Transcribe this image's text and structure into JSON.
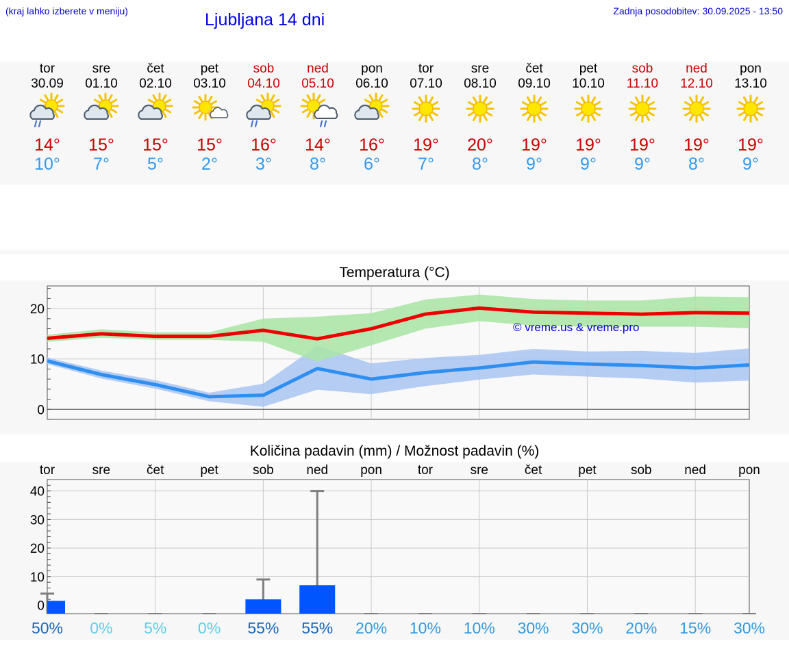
{
  "header": {
    "hint": "(kraj lahko izberete v meniju)",
    "title": "Ljubljana 14 dni",
    "updated_label": "Zadnja posodobitev:",
    "updated_value": "30.09.2025 - 13:50"
  },
  "colors": {
    "max_line": "#ee0000",
    "max_band": "#a9e5a4",
    "min_line": "#2f8ff0",
    "min_band": "#a9c4f2",
    "bar": "#0055ff",
    "error_bar": "#7f7f7f",
    "weekend": "#cc0000"
  },
  "days": [
    {
      "name": "tor",
      "date": "30.09",
      "weekend": false,
      "icon": "sun-cloud-rain-icon",
      "tmax": "14°",
      "tmin": "10°"
    },
    {
      "name": "sre",
      "date": "01.10",
      "weekend": false,
      "icon": "sun-cloud-icon",
      "tmax": "15°",
      "tmin": "7°"
    },
    {
      "name": "čet",
      "date": "02.10",
      "weekend": false,
      "icon": "sun-cloud-icon",
      "tmax": "15°",
      "tmin": "5°"
    },
    {
      "name": "pet",
      "date": "03.10",
      "weekend": false,
      "icon": "sun-small-cloud-icon",
      "tmax": "15°",
      "tmin": "2°"
    },
    {
      "name": "sob",
      "date": "04.10",
      "weekend": true,
      "icon": "sun-cloud-rain-icon",
      "tmax": "16°",
      "tmin": "3°"
    },
    {
      "name": "ned",
      "date": "05.10",
      "weekend": true,
      "icon": "sun-rain-cloud-icon",
      "tmax": "14°",
      "tmin": "8°"
    },
    {
      "name": "pon",
      "date": "06.10",
      "weekend": false,
      "icon": "sun-cloud-icon",
      "tmax": "16°",
      "tmin": "6°"
    },
    {
      "name": "tor",
      "date": "07.10",
      "weekend": false,
      "icon": "sun-icon",
      "tmax": "19°",
      "tmin": "7°"
    },
    {
      "name": "sre",
      "date": "08.10",
      "weekend": false,
      "icon": "sun-icon",
      "tmax": "20°",
      "tmin": "8°"
    },
    {
      "name": "čet",
      "date": "09.10",
      "weekend": false,
      "icon": "sun-icon",
      "tmax": "19°",
      "tmin": "9°"
    },
    {
      "name": "pet",
      "date": "10.10",
      "weekend": false,
      "icon": "sun-icon",
      "tmax": "19°",
      "tmin": "9°"
    },
    {
      "name": "sob",
      "date": "11.10",
      "weekend": true,
      "icon": "sun-icon",
      "tmax": "19°",
      "tmin": "9°"
    },
    {
      "name": "ned",
      "date": "12.10",
      "weekend": true,
      "icon": "sun-icon",
      "tmax": "19°",
      "tmin": "8°"
    },
    {
      "name": "pon",
      "date": "13.10",
      "weekend": false,
      "icon": "sun-icon",
      "tmax": "19°",
      "tmin": "9°"
    }
  ],
  "chart_data": [
    {
      "type": "line",
      "title": "Temperatura (°C)",
      "ylim": [
        -2,
        24.5
      ],
      "yticks": [
        0,
        10,
        20
      ],
      "x": [
        0,
        1,
        2,
        3,
        4,
        5,
        6,
        7,
        8,
        9,
        10,
        11,
        12,
        13
      ],
      "series": [
        {
          "name": "max",
          "values": [
            14.1,
            15.0,
            14.5,
            14.5,
            15.7,
            14.0,
            16.0,
            18.9,
            20.1,
            19.3,
            19.1,
            18.9,
            19.2,
            19.1
          ],
          "band_low": [
            13.4,
            14.2,
            13.8,
            13.8,
            13.4,
            9.5,
            12.7,
            16.0,
            17.5,
            16.6,
            16.4,
            16.4,
            16.4,
            16.1
          ],
          "band_high": [
            14.8,
            15.9,
            15.3,
            15.3,
            18.0,
            18.4,
            19.1,
            21.8,
            22.8,
            21.9,
            21.6,
            21.6,
            22.4,
            22.3
          ]
        },
        {
          "name": "min",
          "values": [
            9.6,
            6.9,
            4.9,
            2.5,
            2.8,
            8.1,
            6.0,
            7.3,
            8.2,
            9.4,
            9.0,
            8.7,
            8.2,
            8.8
          ],
          "band_low": [
            9.0,
            6.1,
            4.1,
            1.6,
            0.5,
            3.9,
            3.0,
            4.6,
            5.9,
            6.9,
            6.5,
            6.1,
            5.3,
            5.7
          ],
          "band_high": [
            10.3,
            7.7,
            5.8,
            3.3,
            5.1,
            12.6,
            9.1,
            10.2,
            10.8,
            12.0,
            11.5,
            11.6,
            11.2,
            12.1
          ]
        }
      ],
      "annotation": "© vreme.us & vreme.pro"
    },
    {
      "type": "bar",
      "title": "Količina padavin (mm) / Možnost padavin (%)",
      "ylim": [
        -3,
        44
      ],
      "yticks": [
        0,
        10,
        20,
        30,
        40
      ],
      "categories": [
        "tor",
        "sre",
        "čet",
        "pet",
        "sob",
        "ned",
        "pon",
        "tor",
        "sre",
        "čet",
        "pet",
        "sob",
        "ned",
        "pon"
      ],
      "values": [
        1.5,
        0,
        0,
        0,
        2,
        7,
        0,
        0,
        0,
        0,
        0,
        0,
        0,
        0
      ],
      "error_max": [
        4,
        0,
        0,
        0,
        9,
        40,
        0,
        0,
        0,
        0,
        0,
        0,
        0,
        0
      ],
      "chance": [
        "50%",
        "0%",
        "5%",
        "0%",
        "55%",
        "55%",
        "20%",
        "10%",
        "10%",
        "30%",
        "30%",
        "20%",
        "15%",
        "30%"
      ],
      "chance_colors": [
        "#1a66b8",
        "#5bcfe6",
        "#5bcfe6",
        "#5bcfe6",
        "#1a66b8",
        "#1a66b8",
        "#3399dd",
        "#3399dd",
        "#3399dd",
        "#3399dd",
        "#3399dd",
        "#3399dd",
        "#3399dd",
        "#3399dd"
      ]
    }
  ]
}
